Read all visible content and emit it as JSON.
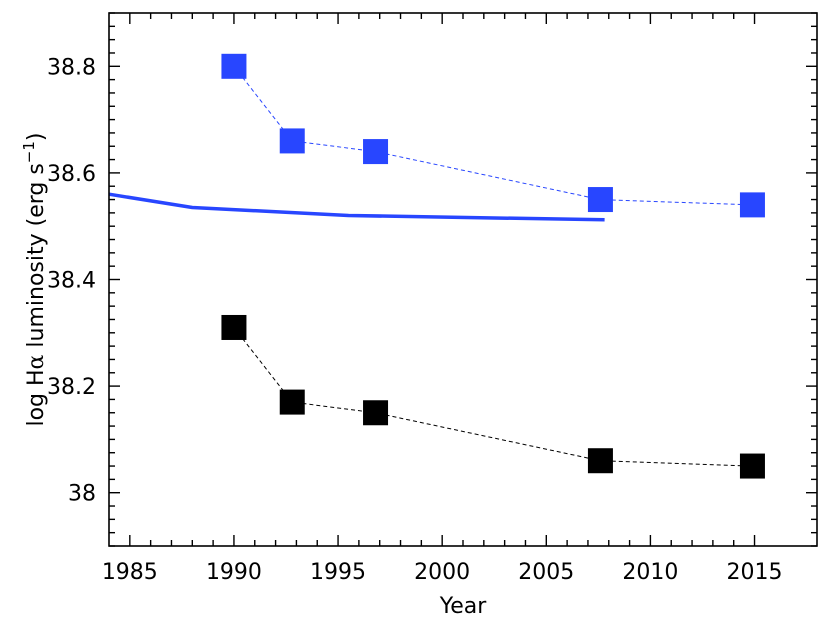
{
  "chart_data": {
    "type": "scatter",
    "title": "",
    "xlabel": "Year",
    "ylabel_main": "log H",
    "ylabel_greek": "α",
    "ylabel_rest": " luminosity (erg s",
    "ylabel_sup": "−1",
    "ylabel_close": ")",
    "xlim": [
      1984,
      2018
    ],
    "ylim": [
      37.9,
      38.9
    ],
    "xticks": [
      1985,
      1990,
      1995,
      2000,
      2005,
      2010,
      2015
    ],
    "xtick_labels": [
      "1985",
      "1990",
      "1995",
      "2000",
      "2005",
      "2010",
      "2015"
    ],
    "yticks": [
      38.0,
      38.2,
      38.4,
      38.6,
      38.8
    ],
    "ytick_labels": [
      "38",
      "38.2",
      "38.4",
      "38.6",
      "38.8"
    ],
    "grid": false,
    "series": [
      {
        "style": "square-markers-dashed",
        "color": "#2846ff",
        "x": [
          1990.0,
          1992.8,
          1996.8,
          2007.6,
          2014.9
        ],
        "y": [
          38.8,
          38.66,
          38.64,
          38.55,
          38.54
        ]
      },
      {
        "style": "square-markers-dashed",
        "color": "#000000",
        "x": [
          1990.0,
          1992.8,
          1996.8,
          2007.6,
          2014.9
        ],
        "y": [
          38.31,
          38.17,
          38.15,
          38.06,
          38.05
        ]
      },
      {
        "style": "solid-line",
        "color": "#2846ff",
        "x": [
          1984.0,
          1988.0,
          1995.5,
          2007.8
        ],
        "y": [
          38.56,
          38.535,
          38.52,
          38.512
        ]
      }
    ]
  }
}
